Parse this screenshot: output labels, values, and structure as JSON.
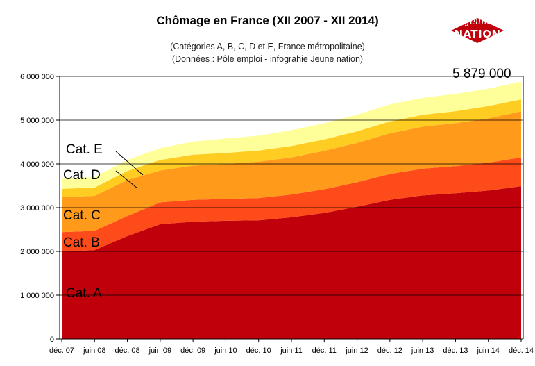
{
  "chart_data": {
    "type": "area",
    "stacked": true,
    "title": "Chômage en France (XII 2007 - XII 2014)",
    "subtitles": [
      "(Catégories A, B, C, D et E, France métropolitaine)",
      "(Données : Pôle emploi - infograhie Jeune nation)"
    ],
    "x": [
      "déc. 07",
      "juin 08",
      "déc. 08",
      "juin 09",
      "déc. 09",
      "juin 10",
      "déc. 10",
      "juin 11",
      "déc. 11",
      "juin 12",
      "déc. 12",
      "juin 13",
      "déc. 13",
      "juin 14",
      "déc. 14"
    ],
    "series": [
      {
        "name": "Cat. A",
        "color": "#c0000b",
        "values": [
          1990000,
          2030000,
          2350000,
          2620000,
          2680000,
          2700000,
          2710000,
          2780000,
          2880000,
          3020000,
          3180000,
          3280000,
          3330000,
          3390000,
          3490000
        ]
      },
      {
        "name": "Cat. B",
        "color": "#ff4a1a",
        "values": [
          450000,
          440000,
          460000,
          500000,
          500000,
          500000,
          510000,
          520000,
          540000,
          560000,
          590000,
          610000,
          620000,
          640000,
          660000
        ]
      },
      {
        "name": "Cat. C",
        "color": "#ff9a1a",
        "values": [
          800000,
          800000,
          820000,
          730000,
          780000,
          800000,
          830000,
          850000,
          880000,
          900000,
          930000,
          960000,
          980000,
          1010000,
          1050000
        ]
      },
      {
        "name": "Cat. D",
        "color": "#ffcc22",
        "values": [
          190000,
          190000,
          210000,
          240000,
          250000,
          250000,
          255000,
          260000,
          260000,
          265000,
          270000,
          270000,
          275000,
          280000,
          275000
        ]
      },
      {
        "name": "Cat. E",
        "color": "#ffff99",
        "values": [
          240000,
          240000,
          250000,
          270000,
          300000,
          330000,
          340000,
          360000,
          370000,
          380000,
          390000,
          390000,
          395000,
          400000,
          404000
        ]
      }
    ],
    "ylim": [
      0,
      6000000
    ],
    "yticks": [
      "0",
      "1 000 000",
      "2 000 000",
      "3 000 000",
      "4 000 000",
      "5 000 000",
      "6 000 000"
    ],
    "grid": "horizontal",
    "annotation": "5 879 000",
    "labels": {
      "cat_a": "Cat. A",
      "cat_b": "Cat. B",
      "cat_c": "Cat. C",
      "cat_d": "Cat. D",
      "cat_e": "Cat. E"
    }
  },
  "logo": {
    "top": "Jeune",
    "main": "NATION",
    "color": "#c0000b"
  }
}
